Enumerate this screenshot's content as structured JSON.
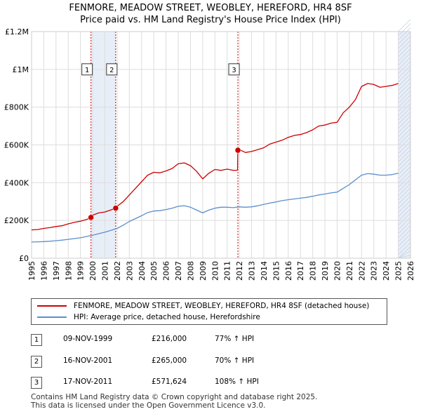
{
  "title_line1": "FENMORE, MEADOW STREET, WEOBLEY, HEREFORD, HR4 8SF",
  "title_line2": "Price paid vs. HM Land Registry's House Price Index (HPI)",
  "colors": {
    "property": "#cc0000",
    "hpi": "#5b8fcc",
    "shade": "#e8eef8",
    "grid": "#dddddd",
    "marker_line": "#cc0000"
  },
  "chart_data": {
    "type": "line",
    "xlim": [
      1995,
      2026
    ],
    "ylim": [
      0,
      1200000
    ],
    "x_ticks": [
      1995,
      1996,
      1997,
      1998,
      1999,
      2000,
      2001,
      2002,
      2003,
      2004,
      2005,
      2006,
      2007,
      2008,
      2009,
      2010,
      2011,
      2012,
      2013,
      2014,
      2015,
      2016,
      2017,
      2018,
      2019,
      2020,
      2021,
      2022,
      2023,
      2024,
      2025,
      2026
    ],
    "y_ticks": [
      {
        "value": 0,
        "label": "£0"
      },
      {
        "value": 200000,
        "label": "£200K"
      },
      {
        "value": 400000,
        "label": "£400K"
      },
      {
        "value": 600000,
        "label": "£600K"
      },
      {
        "value": 800000,
        "label": "£800K"
      },
      {
        "value": 1000000,
        "label": "£1M"
      },
      {
        "value": 1200000,
        "label": "£1.2M"
      }
    ],
    "shaded_ranges": [
      [
        1999.86,
        2001.88
      ],
      [
        2025.0,
        2026.0
      ]
    ],
    "series": [
      {
        "name": "FENMORE, MEADOW STREET, WEOBLEY, HEREFORD, HR4 8SF (detached house)",
        "color": "#cc0000",
        "x": [
          1995.0,
          1995.5,
          1996.0,
          1996.5,
          1997.0,
          1997.5,
          1998.0,
          1998.5,
          1999.0,
          1999.5,
          1999.86,
          2000.0,
          2000.5,
          2001.0,
          2001.5,
          2001.88,
          2002.0,
          2002.5,
          2003.0,
          2003.5,
          2004.0,
          2004.5,
          2005.0,
          2005.5,
          2006.0,
          2006.5,
          2007.0,
          2007.5,
          2008.0,
          2008.5,
          2009.0,
          2009.5,
          2010.0,
          2010.5,
          2011.0,
          2011.5,
          2011.85,
          2011.88,
          2012.0,
          2012.5,
          2013.0,
          2013.5,
          2014.0,
          2014.5,
          2015.0,
          2015.5,
          2016.0,
          2016.5,
          2017.0,
          2017.5,
          2018.0,
          2018.5,
          2019.0,
          2019.5,
          2020.0,
          2020.5,
          2021.0,
          2021.5,
          2022.0,
          2022.5,
          2023.0,
          2023.5,
          2024.0,
          2024.5,
          2025.0
        ],
        "y": [
          150000,
          152000,
          158000,
          162000,
          168000,
          172000,
          182000,
          190000,
          196000,
          205000,
          216000,
          228000,
          240000,
          245000,
          256000,
          265000,
          275000,
          300000,
          335000,
          370000,
          405000,
          440000,
          455000,
          452000,
          462000,
          475000,
          500000,
          505000,
          490000,
          460000,
          420000,
          450000,
          470000,
          465000,
          472000,
          465000,
          466000,
          571624,
          575000,
          560000,
          565000,
          575000,
          585000,
          605000,
          615000,
          625000,
          640000,
          650000,
          655000,
          665000,
          680000,
          700000,
          705000,
          715000,
          720000,
          770000,
          800000,
          840000,
          910000,
          925000,
          920000,
          905000,
          910000,
          915000,
          925000
        ]
      },
      {
        "name": "HPI: Average price, detached house, Herefordshire",
        "color": "#5b8fcc",
        "x": [
          1995.0,
          1995.5,
          1996.0,
          1996.5,
          1997.0,
          1997.5,
          1998.0,
          1998.5,
          1999.0,
          1999.5,
          2000.0,
          2000.5,
          2001.0,
          2001.5,
          2002.0,
          2002.5,
          2003.0,
          2003.5,
          2004.0,
          2004.5,
          2005.0,
          2005.5,
          2006.0,
          2006.5,
          2007.0,
          2007.5,
          2008.0,
          2008.5,
          2009.0,
          2009.5,
          2010.0,
          2010.5,
          2011.0,
          2011.5,
          2012.0,
          2012.5,
          2013.0,
          2013.5,
          2014.0,
          2014.5,
          2015.0,
          2015.5,
          2016.0,
          2016.5,
          2017.0,
          2017.5,
          2018.0,
          2018.5,
          2019.0,
          2019.5,
          2020.0,
          2020.5,
          2021.0,
          2021.5,
          2022.0,
          2022.5,
          2023.0,
          2023.5,
          2024.0,
          2024.5,
          2025.0
        ],
        "y": [
          86000,
          87000,
          88000,
          90000,
          93000,
          96000,
          100000,
          104000,
          108000,
          115000,
          122000,
          130000,
          138000,
          148000,
          158000,
          175000,
          195000,
          210000,
          225000,
          242000,
          250000,
          252000,
          258000,
          265000,
          275000,
          278000,
          270000,
          255000,
          240000,
          255000,
          265000,
          270000,
          270000,
          268000,
          272000,
          270000,
          272000,
          278000,
          285000,
          292000,
          298000,
          305000,
          310000,
          314000,
          318000,
          322000,
          328000,
          335000,
          340000,
          346000,
          350000,
          370000,
          390000,
          415000,
          440000,
          448000,
          445000,
          440000,
          440000,
          443000,
          450000
        ]
      }
    ],
    "sales": [
      {
        "id": "1",
        "x": 1999.86,
        "y": 216000
      },
      {
        "id": "2",
        "x": 2001.88,
        "y": 265000
      },
      {
        "id": "3",
        "x": 2011.88,
        "y": 571624
      }
    ],
    "label_box_value": 1000000
  },
  "legend": {
    "property_label": "FENMORE, MEADOW STREET, WEOBLEY, HEREFORD, HR4 8SF (detached house)",
    "hpi_label": "HPI: Average price, detached house, Herefordshire"
  },
  "transactions": [
    {
      "num": "1",
      "date": "09-NOV-1999",
      "price": "£216,000",
      "hpi": "77% ↑ HPI"
    },
    {
      "num": "2",
      "date": "16-NOV-2001",
      "price": "£265,000",
      "hpi": "70% ↑ HPI"
    },
    {
      "num": "3",
      "date": "17-NOV-2011",
      "price": "£571,624",
      "hpi": "108% ↑ HPI"
    }
  ],
  "footer_line1": "Contains HM Land Registry data © Crown copyright and database right 2025.",
  "footer_line2": "This data is licensed under the Open Government Licence v3.0."
}
